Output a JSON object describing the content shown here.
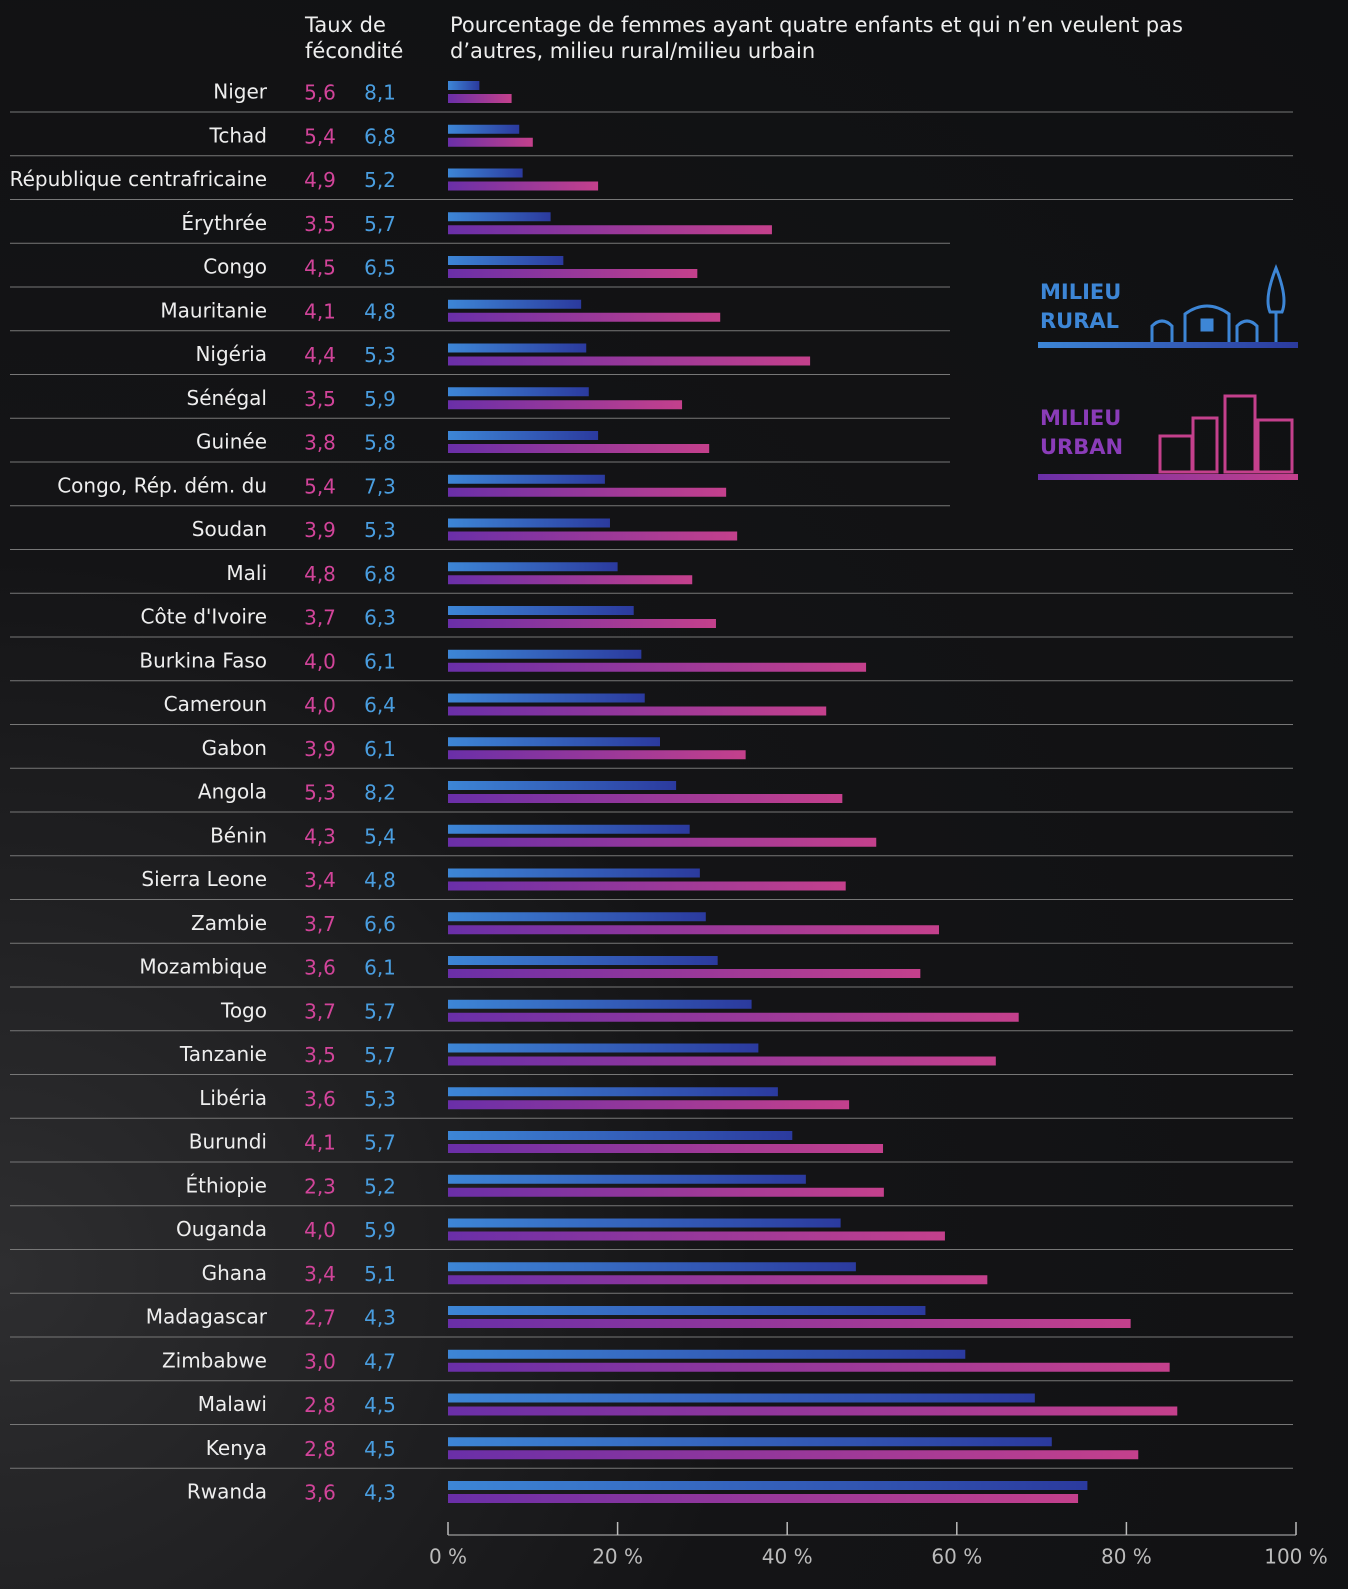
{
  "chart_data": {
    "type": "bar",
    "orientation": "horizontal",
    "title": "Pourcentage de femmes ayant quatre enfants et qui n’en veulent pas d’autres, milieu rural/milieu urbain",
    "fertility_header": "Taux de fécondité",
    "categories": [
      "Niger",
      "Tchad",
      "République centrafricaine",
      "Érythrée",
      "Congo",
      "Mauritanie",
      "Nigéria",
      "Sénégal",
      "Guinée",
      "Congo, Rép. dém. du",
      "Soudan",
      "Mali",
      "Côte d'Ivoire",
      "Burkina Faso",
      "Cameroun",
      "Gabon",
      "Angola",
      "Bénin",
      "Sierra Leone",
      "Zambie",
      "Mozambique",
      "Togo",
      "Tanzanie",
      "Libéria",
      "Burundi",
      "Éthiopie",
      "Ouganda",
      "Ghana",
      "Madagascar",
      "Zimbabwe",
      "Malawi",
      "Kenya",
      "Rwanda"
    ],
    "fertility": [
      {
        "name": "urban",
        "color": "#d2449a",
        "values": [
          5.6,
          5.4,
          4.9,
          3.5,
          4.5,
          4.1,
          4.4,
          3.5,
          3.8,
          5.4,
          3.9,
          4.8,
          3.7,
          4.0,
          4.0,
          3.9,
          5.3,
          4.3,
          3.4,
          3.7,
          3.6,
          3.7,
          3.5,
          3.6,
          4.1,
          2.3,
          4.0,
          3.4,
          2.7,
          3.0,
          2.8,
          2.8,
          3.6
        ],
        "value_labels": [
          "5,6",
          "5,4",
          "4,9",
          "3,5",
          "4,5",
          "4,1",
          "4,4",
          "3,5",
          "3,8",
          "5,4",
          "3,9",
          "4,8",
          "3,7",
          "4,0",
          "4,0",
          "3,9",
          "5,3",
          "4,3",
          "3,4",
          "3,7",
          "3,6",
          "3,7",
          "3,5",
          "3,6",
          "4,1",
          "2,3",
          "4,0",
          "3,4",
          "2,7",
          "3,0",
          "2,8",
          "2,8",
          "3,6"
        ]
      },
      {
        "name": "rural",
        "color": "#4a9ee0",
        "values": [
          8.1,
          6.8,
          5.2,
          5.7,
          6.5,
          4.8,
          5.3,
          5.9,
          5.8,
          7.3,
          5.3,
          6.8,
          6.3,
          6.1,
          6.4,
          6.1,
          8.2,
          5.4,
          4.8,
          6.6,
          6.1,
          5.7,
          5.7,
          5.3,
          5.7,
          5.2,
          5.9,
          5.1,
          4.3,
          4.7,
          4.5,
          4.5,
          4.3
        ],
        "value_labels": [
          "8,1",
          "6,8",
          "5,2",
          "5,7",
          "6,5",
          "4,8",
          "5,3",
          "5,9",
          "5,8",
          "7,3",
          "5,3",
          "6,8",
          "6,3",
          "6,1",
          "6,4",
          "6,1",
          "8,2",
          "5,4",
          "4,8",
          "6,6",
          "6,1",
          "5,7",
          "5,7",
          "5,3",
          "5,7",
          "5,2",
          "5,9",
          "5,1",
          "4,3",
          "4,7",
          "4,5",
          "4,5",
          "4,3"
        ]
      }
    ],
    "series": [
      {
        "name": "MILIEU RURAL",
        "color": "#3d86d6",
        "color_end": "#2b3a9e",
        "values": [
          3.7,
          8.4,
          8.8,
          12.1,
          13.6,
          15.7,
          16.3,
          16.6,
          17.7,
          18.5,
          19.1,
          20.0,
          21.9,
          22.8,
          23.2,
          25.0,
          26.9,
          28.5,
          29.7,
          30.4,
          31.8,
          35.8,
          36.6,
          38.9,
          40.6,
          42.2,
          46.3,
          48.1,
          56.3,
          61.0,
          69.2,
          71.2,
          75.4
        ]
      },
      {
        "name": "MILIEU URBAN",
        "color": "#6a2fa8",
        "color_end": "#c4408c",
        "values": [
          7.5,
          10.0,
          17.7,
          38.2,
          29.4,
          32.1,
          42.7,
          27.6,
          30.8,
          32.8,
          34.1,
          28.8,
          31.6,
          49.3,
          44.6,
          35.1,
          46.5,
          50.5,
          46.9,
          57.9,
          55.7,
          67.3,
          64.6,
          47.3,
          51.3,
          51.4,
          58.6,
          63.6,
          80.5,
          85.1,
          86.0,
          81.4,
          74.3
        ]
      }
    ],
    "xlim": [
      0,
      100
    ],
    "xticks": [
      {
        "value": 0,
        "label": "0 %"
      },
      {
        "value": 20,
        "label": "20 %"
      },
      {
        "value": 40,
        "label": "40 %"
      },
      {
        "value": 60,
        "label": "60 %"
      },
      {
        "value": 80,
        "label": "80 %"
      },
      {
        "value": 100,
        "label": "100 %"
      }
    ]
  }
}
